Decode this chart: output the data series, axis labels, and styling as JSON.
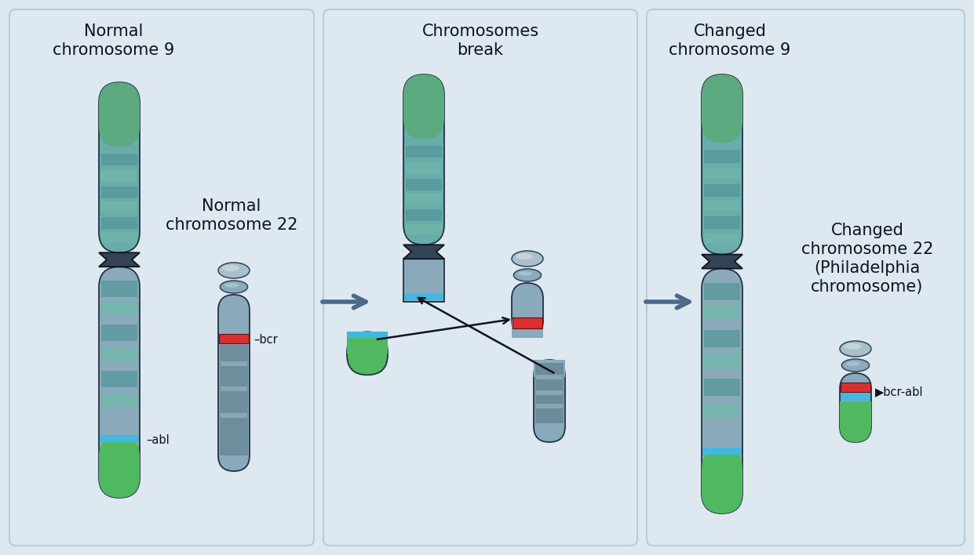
{
  "bg_color": "#dde8f0",
  "panel_bg": "#dde8f0",
  "fig_width": 12.41,
  "fig_height": 7.08,
  "title_fontsize": 15,
  "colors": {
    "chr9_top_green": "#5baa80",
    "chr9_teal_body": "#6aacaa",
    "chr_steel": "#8aaabb",
    "chr_steel_light": "#aabfcc",
    "chr_steel_dark": "#6a8898",
    "centromere_dark": "#334455",
    "abl_blue": "#40b8e0",
    "bcr_red": "#d83030",
    "green_bottom": "#50b860",
    "band_teal1": "#70b8aa",
    "band_teal2": "#55969a",
    "band_grey1": "#90aab8",
    "band_grey2": "#6a8898",
    "arrow_color": "#4a6a8a",
    "cross_arrow": "#111122",
    "text_color": "#111122",
    "panel_border": "#b8ccd8"
  },
  "titles": {
    "p1_chr9": "Normal\nchromosome 9",
    "p1_chr22": "Normal\nchromosome 22",
    "p2": "Chromosomes\nbreak",
    "p3_chr9": "Changed\nchromosome 9",
    "p3_chr22": "Changed\nchromosome 22\n(Philadelphia\nchromosome)"
  },
  "labels": {
    "abl": "–abl",
    "bcr": "–bcr",
    "bcr_abl": "▶bcr-abl"
  }
}
